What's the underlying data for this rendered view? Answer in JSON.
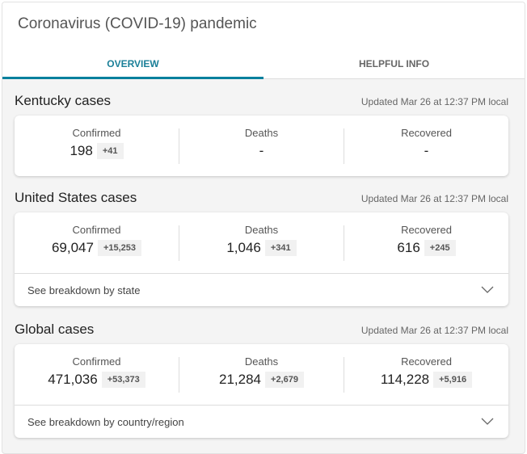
{
  "header": {
    "title": "Coronavirus (COVID-19) pandemic",
    "tabs": [
      {
        "label": "OVERVIEW",
        "active": true
      },
      {
        "label": "HELPFUL INFO",
        "active": false
      }
    ]
  },
  "colors": {
    "accent": "#00809d"
  },
  "sections": [
    {
      "title": "Kentucky cases",
      "updated": "Updated Mar 26 at 12:37 PM local",
      "stats": [
        {
          "label": "Confirmed",
          "value": "198",
          "delta": "+41"
        },
        {
          "label": "Deaths",
          "value": "-",
          "delta": null
        },
        {
          "label": "Recovered",
          "value": "-",
          "delta": null
        }
      ]
    },
    {
      "title": "United States cases",
      "updated": "Updated Mar 26 at 12:37 PM local",
      "stats": [
        {
          "label": "Confirmed",
          "value": "69,047",
          "delta": "+15,253"
        },
        {
          "label": "Deaths",
          "value": "1,046",
          "delta": "+341"
        },
        {
          "label": "Recovered",
          "value": "616",
          "delta": "+245"
        }
      ],
      "breakdown": "See breakdown by state"
    },
    {
      "title": "Global cases",
      "updated": "Updated Mar 26 at 12:37 PM local",
      "stats": [
        {
          "label": "Confirmed",
          "value": "471,036",
          "delta": "+53,373"
        },
        {
          "label": "Deaths",
          "value": "21,284",
          "delta": "+2,679"
        },
        {
          "label": "Recovered",
          "value": "114,228",
          "delta": "+5,916"
        }
      ],
      "breakdown": "See breakdown by country/region"
    }
  ]
}
